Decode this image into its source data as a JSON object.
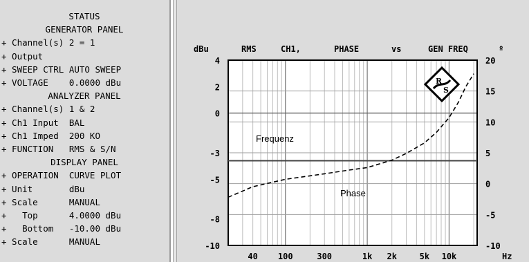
{
  "status_panel": {
    "lines": [
      {
        "text": "STATUS",
        "kind": "head"
      },
      {
        "text": "GENERATOR PANEL",
        "kind": "head"
      },
      {
        "text": "+ Channel(s) 2 = 1",
        "kind": "item"
      },
      {
        "text": "+ Output",
        "kind": "item"
      },
      {
        "text": "+ SWEEP CTRL AUTO SWEEP",
        "kind": "item"
      },
      {
        "text": "+ VOLTAGE    0.0000 dBu",
        "kind": "item"
      },
      {
        "text": "ANALYZER PANEL",
        "kind": "head"
      },
      {
        "text": "+ Channel(s) 1 & 2",
        "kind": "item"
      },
      {
        "text": "+ Ch1 Input  BAL",
        "kind": "item"
      },
      {
        "text": "+ Ch1 Imped  200 KO",
        "kind": "item"
      },
      {
        "text": "+ FUNCTION   RMS & S/N",
        "kind": "item"
      },
      {
        "text": "DISPLAY PANEL",
        "kind": "head"
      },
      {
        "text": "+ OPERATION  CURVE PLOT",
        "kind": "item"
      },
      {
        "text": "+ Unit       dBu",
        "kind": "item"
      },
      {
        "text": "+ Scale      MANUAL",
        "kind": "item"
      },
      {
        "text": "+   Top      4.0000 dBu",
        "kind": "item"
      },
      {
        "text": "+   Bottom   -10.00 dBu",
        "kind": "item"
      },
      {
        "text": "+ Scale      MANUAL",
        "kind": "item"
      }
    ]
  },
  "plot_header": {
    "left_unit": "dBu",
    "words": [
      "RMS",
      "CH1,",
      "PHASE",
      "vs",
      "GEN FREQ"
    ],
    "right_unit": "º"
  },
  "chart_data": {
    "type": "line",
    "x_scale": "log",
    "xlim": [
      20,
      22000
    ],
    "x_tick_labels": [
      {
        "value": 40,
        "label": "40"
      },
      {
        "value": 100,
        "label": "100"
      },
      {
        "value": 300,
        "label": "300"
      },
      {
        "value": 1000,
        "label": "1k"
      },
      {
        "value": 2000,
        "label": "2k"
      },
      {
        "value": 5000,
        "label": "5k"
      },
      {
        "value": 10000,
        "label": "10k"
      }
    ],
    "x_unit": "Hz",
    "y_left": {
      "unit": "dBu",
      "ylim": [
        -10,
        4
      ],
      "tick_labels": [
        "4",
        "2",
        "0",
        "-3",
        "-5",
        "-8",
        "-10"
      ],
      "tick_values": [
        4,
        2,
        0,
        -3,
        -5,
        -8,
        -10
      ]
    },
    "y_right": {
      "unit": "º",
      "ylim": [
        -10,
        20
      ],
      "tick_labels": [
        "20",
        "15",
        "10",
        "5",
        "0",
        "-5",
        "-10"
      ],
      "tick_values": [
        20,
        15,
        10,
        5,
        0,
        -5,
        -10
      ]
    },
    "series": [
      {
        "name": "Frequenz",
        "axis": "left",
        "style": "solid",
        "color": "#444444",
        "x": [
          20,
          22000
        ],
        "y": [
          -3.6,
          -3.6
        ]
      },
      {
        "name": "Phase",
        "axis": "right",
        "style": "dashed",
        "color": "#000000",
        "x": [
          20,
          40,
          100,
          300,
          600,
          1000,
          2000,
          3000,
          5000,
          7000,
          10000,
          13000,
          16000,
          20000
        ],
        "y": [
          -2.2,
          -0.5,
          0.7,
          1.6,
          2.2,
          2.6,
          3.8,
          4.9,
          6.6,
          8.3,
          10.7,
          13.2,
          15.7,
          17.8
        ]
      }
    ],
    "grid": true,
    "legend": "none"
  },
  "logo": {
    "letters": [
      "R",
      "S"
    ]
  }
}
